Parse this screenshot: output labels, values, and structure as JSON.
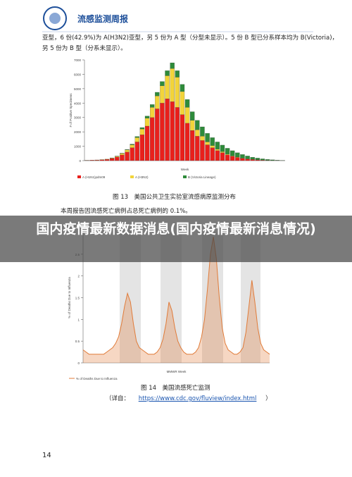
{
  "header": {
    "title": "流感监测周报"
  },
  "paragraphs": [
    "亚型，6 份(42.9%)为 A(H3N2)亚型，另 5 份为 A 型（分型未显示）。5 份 B 型已分系样本均为 B(Victoria)，",
    "另 5 份为 B 型（分系未显示）。",
    "本周报告因流感死亡病例占总死亡病例的 0.1%。"
  ],
  "overlay_title": "国内疫情最新数据消息(国内疫情最新消息情况)",
  "figure13": {
    "caption": "图 13　美国公共卫生实验室流感病原监测分布",
    "chart": {
      "type": "bar",
      "y_label": "# of Positive Specimens",
      "x_label": "Week",
      "ylim": [
        0,
        7000
      ],
      "yticks": [
        0,
        1000,
        2000,
        3000,
        4000,
        5000,
        6000,
        7000
      ],
      "series": [
        {
          "name": "A (H1N1)pdm09",
          "color": "#e8201c",
          "values": [
            20,
            30,
            40,
            60,
            90,
            150,
            250,
            400,
            600,
            900,
            1300,
            1800,
            2400,
            3000,
            3600,
            4000,
            4300,
            4100,
            3700,
            3200,
            2600,
            2100,
            1700,
            1400,
            1100,
            900,
            700,
            550,
            400,
            300,
            220,
            160,
            110,
            80,
            50,
            30,
            20,
            15,
            10,
            5
          ]
        },
        {
          "name": "A (H3N2)",
          "color": "#f2d43a",
          "values": [
            5,
            5,
            10,
            15,
            20,
            40,
            60,
            100,
            150,
            200,
            300,
            400,
            550,
            700,
            900,
            1200,
            1600,
            2300,
            2100,
            1600,
            1100,
            700,
            450,
            300,
            200,
            150,
            100,
            80,
            60,
            40,
            30,
            20,
            15,
            10,
            8,
            5,
            5,
            3,
            2,
            1
          ]
        },
        {
          "name": "B (Victoria Lineage)",
          "color": "#2e8b3a",
          "values": [
            0,
            0,
            0,
            0,
            0,
            5,
            10,
            20,
            30,
            50,
            80,
            100,
            150,
            200,
            250,
            300,
            350,
            400,
            450,
            500,
            550,
            600,
            650,
            650,
            600,
            550,
            500,
            450,
            400,
            350,
            300,
            250,
            200,
            150,
            120,
            90,
            60,
            40,
            20,
            10
          ]
        }
      ]
    }
  },
  "figure14": {
    "caption": "图 14　美国流感死亡监测",
    "chart": {
      "type": "line",
      "y_label": "% of Deaths Due to Influenza",
      "x_label": "MMWR Week",
      "ylim": [
        0,
        3
      ],
      "yticks": [
        0,
        0.5,
        1,
        1.5,
        2,
        2.5,
        3
      ],
      "series": [
        {
          "name": "% of Deaths Due to Influenza",
          "color": "#e07b39",
          "values": [
            0.3,
            0.25,
            0.2,
            0.2,
            0.2,
            0.2,
            0.2,
            0.2,
            0.25,
            0.3,
            0.35,
            0.45,
            0.6,
            0.9,
            1.3,
            1.6,
            1.4,
            0.9,
            0.5,
            0.35,
            0.3,
            0.25,
            0.2,
            0.2,
            0.2,
            0.25,
            0.35,
            0.55,
            0.9,
            1.4,
            1.2,
            0.8,
            0.5,
            0.35,
            0.25,
            0.2,
            0.2,
            0.2,
            0.25,
            0.35,
            0.6,
            1.0,
            1.7,
            2.5,
            2.9,
            2.4,
            1.5,
            0.8,
            0.45,
            0.3,
            0.25,
            0.2,
            0.2,
            0.25,
            0.35,
            0.7,
            1.3,
            1.9,
            1.4,
            0.8,
            0.45,
            0.3,
            0.25,
            0.2
          ]
        }
      ]
    }
  },
  "source": {
    "label": "（详自：",
    "url": "https://www.cdc.gov/fluview/index.html",
    "close": "）"
  },
  "page_number": "14"
}
